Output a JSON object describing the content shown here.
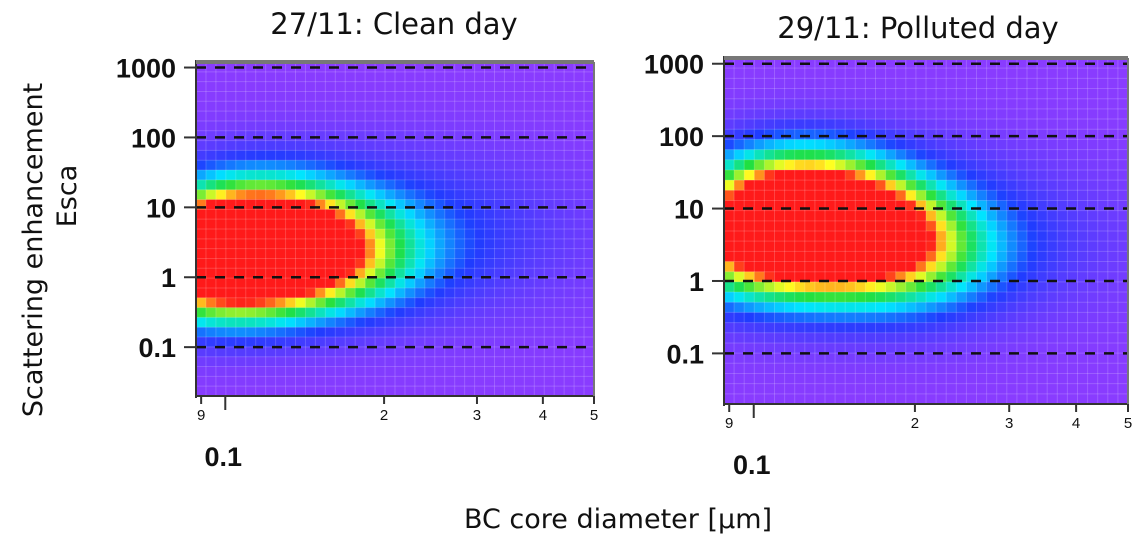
{
  "figure": {
    "ylabel_line1": "Scattering enhancement",
    "ylabel_line2": "Esca",
    "xlabel": "BC core diameter [µm]"
  },
  "chart_data": [
    {
      "type": "heatmap",
      "title": "27/11: Clean day",
      "y_scale": "log",
      "ylim": [
        0.02,
        1200
      ],
      "y_ticks": [
        0.1,
        1,
        10,
        100,
        1000
      ],
      "y_tick_labels": [
        "0.1",
        "1",
        "10",
        "100",
        "1000"
      ],
      "x_scale": "log",
      "xlim": [
        0.088,
        0.5
      ],
      "x_ticks": [
        0.09,
        0.1,
        0.2,
        0.3,
        0.4,
        0.5
      ],
      "x_tick_labels": [
        "9",
        "",
        "2",
        "3",
        "4",
        "5"
      ],
      "x_major_label": "0.1",
      "hgrid_dashed": true,
      "colormap": [
        "#8a3cff",
        "#1f3cff",
        "#00e5ff",
        "#20e040",
        "#ffff20",
        "#ff1a1a"
      ],
      "hotspots": [
        {
          "x": 0.095,
          "y": 1.45,
          "intensity": 1.0
        },
        {
          "x": 0.12,
          "y": 2.5,
          "intensity": 0.78
        },
        {
          "x": 0.11,
          "y": 5,
          "intensity": 0.6
        },
        {
          "x": 0.16,
          "y": 2,
          "intensity": 0.45
        }
      ]
    },
    {
      "type": "heatmap",
      "title": "29/11: Polluted day",
      "y_scale": "log",
      "ylim": [
        0.02,
        1200
      ],
      "y_ticks": [
        0.1,
        1,
        10,
        100,
        1000
      ],
      "y_tick_labels": [
        "0.1",
        "1",
        "10",
        "100",
        "1000"
      ],
      "x_scale": "log",
      "xlim": [
        0.088,
        0.5
      ],
      "x_ticks": [
        0.09,
        0.1,
        0.2,
        0.3,
        0.4,
        0.5
      ],
      "x_tick_labels": [
        "9",
        "",
        "2",
        "3",
        "4",
        "5"
      ],
      "x_major_label": "0.1",
      "hgrid_dashed": true,
      "colormap": [
        "#8a3cff",
        "#1f3cff",
        "#00e5ff",
        "#20e040",
        "#ffff20",
        "#ff1a1a"
      ],
      "hotspots": [
        {
          "x": 0.14,
          "y": 5,
          "intensity": 1.0
        },
        {
          "x": 0.12,
          "y": 12,
          "intensity": 0.85
        },
        {
          "x": 0.1,
          "y": 3,
          "intensity": 0.6
        },
        {
          "x": 0.19,
          "y": 2.5,
          "intensity": 0.5
        }
      ]
    }
  ]
}
